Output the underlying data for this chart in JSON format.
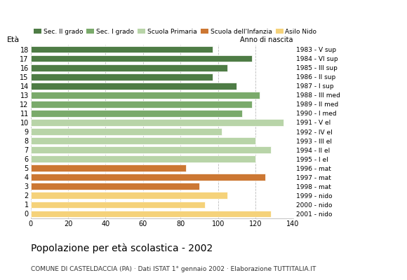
{
  "ages": [
    18,
    17,
    16,
    15,
    14,
    13,
    12,
    11,
    10,
    9,
    8,
    7,
    6,
    5,
    4,
    3,
    2,
    1,
    0
  ],
  "values": [
    97,
    118,
    105,
    97,
    110,
    122,
    118,
    113,
    135,
    102,
    120,
    128,
    120,
    83,
    125,
    90,
    105,
    93,
    128
  ],
  "right_labels": [
    "1983 - V sup",
    "1984 - VI sup",
    "1985 - III sup",
    "1986 - II sup",
    "1987 - I sup",
    "1988 - III med",
    "1989 - II med",
    "1990 - I med",
    "1991 - V el",
    "1992 - IV el",
    "1993 - III el",
    "1994 - II el",
    "1995 - I el",
    "1996 - mat",
    "1997 - mat",
    "1998 - mat",
    "1999 - nido",
    "2000 - nido",
    "2001 - nido"
  ],
  "bar_colors_by_age": {
    "18": "#4e7c45",
    "17": "#4e7c45",
    "16": "#4e7c45",
    "15": "#4e7c45",
    "14": "#4e7c45",
    "13": "#7aaa6b",
    "12": "#7aaa6b",
    "11": "#7aaa6b",
    "10": "#b8d4a8",
    "9": "#b8d4a8",
    "8": "#b8d4a8",
    "7": "#b8d4a8",
    "6": "#b8d4a8",
    "5": "#cc7733",
    "4": "#cc7733",
    "3": "#cc7733",
    "2": "#f5d27a",
    "1": "#f5d27a",
    "0": "#f5d27a"
  },
  "ylabel": "Età",
  "anno_nascita_label": "Anno di nascita",
  "title": "Popolazione per età scolastica - 2002",
  "subtitle": "COMUNE DI CASTELDACCIA (PA) · Dati ISTAT 1° gennaio 2002 · Elaborazione TUTTITALIA.IT",
  "xlim": [
    0,
    140
  ],
  "xticks": [
    0,
    20,
    40,
    60,
    80,
    100,
    120,
    140
  ],
  "legend_labels": [
    "Sec. II grado",
    "Sec. I grado",
    "Scuola Primaria",
    "Scuola dell'Infanzia",
    "Asilo Nido"
  ],
  "legend_colors": [
    "#4e7c45",
    "#7aaa6b",
    "#b8d4a8",
    "#cc7733",
    "#f5d27a"
  ],
  "grid_color": "#bbbbbb",
  "background_color": "#ffffff",
  "bar_height": 0.75
}
